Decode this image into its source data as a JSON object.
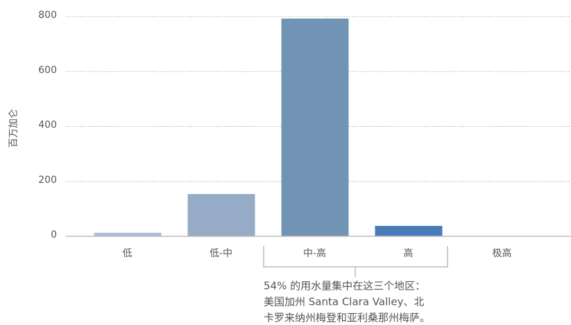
{
  "chart_data": {
    "type": "bar",
    "y_label": "百万加仑",
    "categories": [
      "低",
      "低-中",
      "中-高",
      "高",
      "极高"
    ],
    "values": [
      13,
      154,
      793,
      38,
      0
    ],
    "colors": [
      "#aabdd4",
      "#96abc6",
      "#7294b4",
      "#4a7db8",
      "#4a7db8"
    ],
    "ylim": [
      0,
      800
    ],
    "yticks": [
      0,
      200,
      400,
      600,
      800
    ],
    "grid": true,
    "annotation": [
      "54% 的用水量集中在这三个地区：",
      "美国加州 Santa Clara Valley、北",
      "卡罗来纳州梅登和亚利桑那州梅萨。"
    ]
  }
}
